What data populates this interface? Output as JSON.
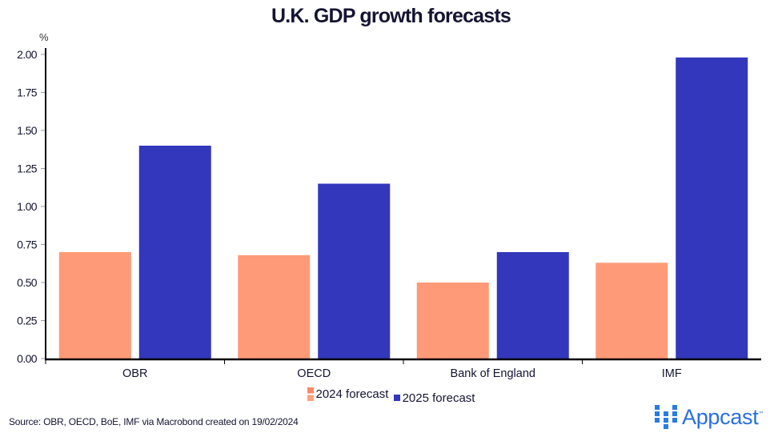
{
  "chart_data": {
    "type": "bar",
    "title": "U.K. GDP growth forecasts",
    "ylabel": "%",
    "xlabel": "",
    "ylim": [
      0,
      2.0
    ],
    "yticks": [
      "0.00",
      "0.25",
      "0.50",
      "0.75",
      "1.00",
      "1.25",
      "1.50",
      "1.75",
      "2.00"
    ],
    "categories": [
      "OBR",
      "OECD",
      "Bank of England",
      "IMF"
    ],
    "series": [
      {
        "name": "2024 forecast",
        "color": "#fe9a77",
        "values": [
          0.7,
          0.68,
          0.5,
          0.63
        ]
      },
      {
        "name": "2025 forecast",
        "color": "#3237bc",
        "values": [
          1.4,
          1.15,
          0.7,
          1.98
        ]
      }
    ],
    "grid": false,
    "legend_position": "bottom-center"
  },
  "footer": {
    "source": "Source: OBR, OECD, BoE, IMF via Macrobond created on 19/02/2024"
  },
  "logo": {
    "text": "Appcast",
    "trademark": "™",
    "color": "#2a7be4"
  }
}
